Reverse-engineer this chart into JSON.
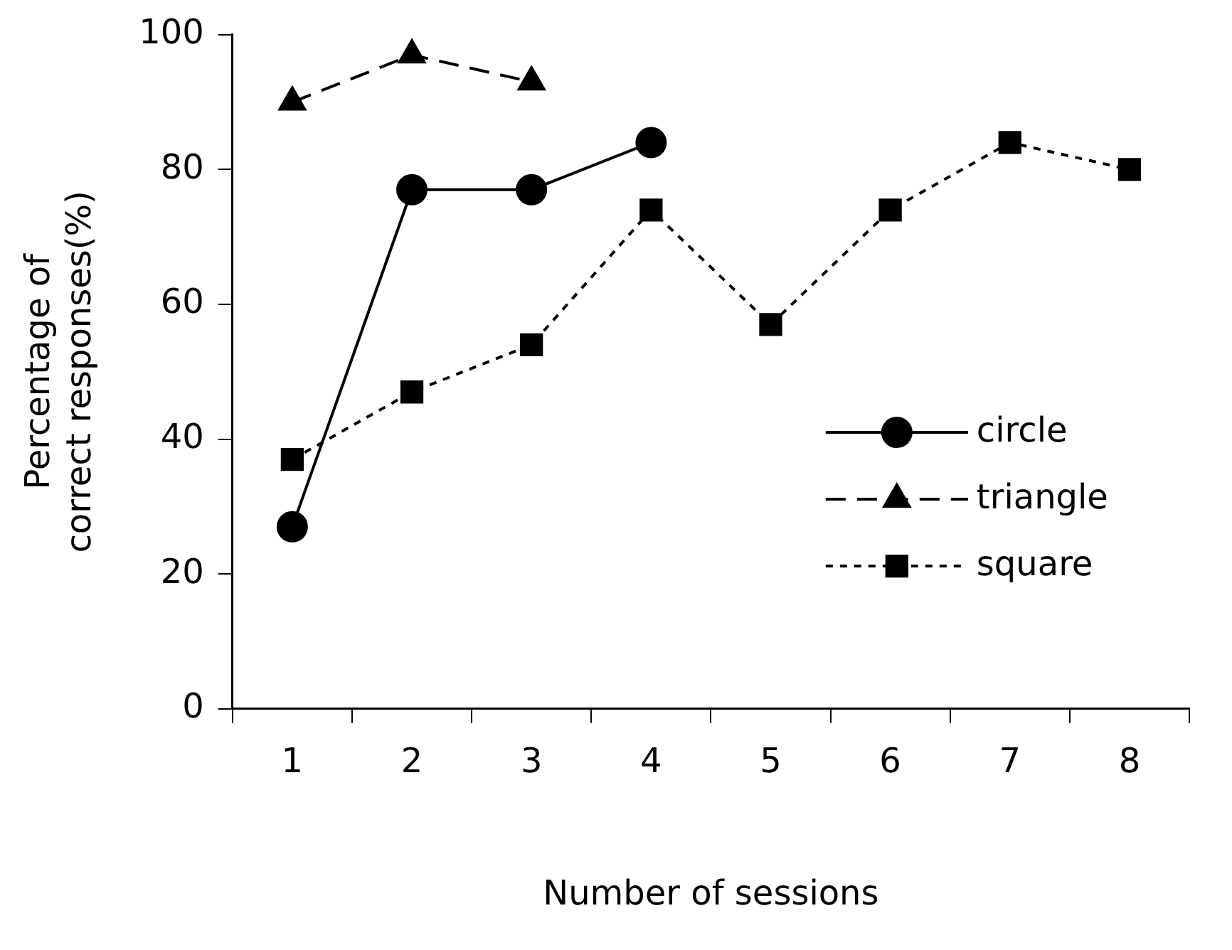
{
  "chart_data": {
    "type": "line",
    "xlabel": "Number of sessions",
    "ylabel": "Percentage of correct responses(%)",
    "categories": [
      "1",
      "2",
      "3",
      "4",
      "5",
      "6",
      "7",
      "8"
    ],
    "series": [
      {
        "name": "circle",
        "color": "#000000",
        "marker": "circle",
        "line_style": "solid",
        "values": [
          27,
          77,
          77,
          84,
          null,
          null,
          null,
          null
        ]
      },
      {
        "name": "triangle",
        "color": "#000000",
        "marker": "triangle",
        "line_style": "dashed",
        "values": [
          90,
          97,
          93,
          null,
          null,
          null,
          null,
          null
        ]
      },
      {
        "name": "square",
        "color": "#000000",
        "marker": "square",
        "line_style": "dotted",
        "values": [
          37,
          47,
          54,
          74,
          57,
          74,
          84,
          80
        ]
      }
    ],
    "ylim": [
      0,
      100
    ],
    "yticks": [
      0,
      20,
      40,
      60,
      80,
      100
    ],
    "grid": false,
    "legend": "right"
  }
}
